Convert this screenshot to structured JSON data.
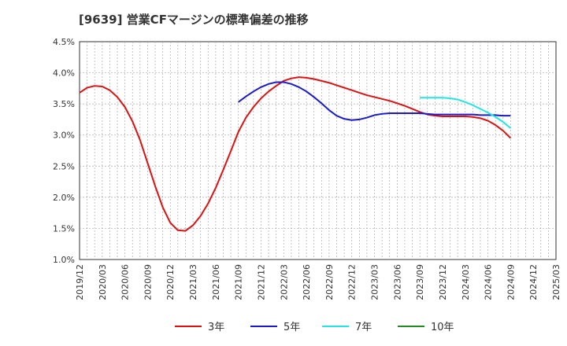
{
  "title": "[9639]  営業CFマージンの標準偏差の推移",
  "chart_data": {
    "type": "line",
    "title": "[9639]  営業CFマージンの標準偏差の推移",
    "xlabel": "",
    "ylabel": "",
    "ylim": [
      1.0,
      4.5
    ],
    "yticks": [
      "4.5%",
      "4.0%",
      "3.5%",
      "3.0%",
      "2.5%",
      "2.0%",
      "1.5%",
      "1.0%"
    ],
    "xticks": [
      "2019/12",
      "2020/03",
      "2020/06",
      "2020/09",
      "2020/12",
      "2021/03",
      "2021/06",
      "2021/09",
      "2021/12",
      "2022/03",
      "2022/06",
      "2022/09",
      "2022/12",
      "2023/03",
      "2023/06",
      "2023/09",
      "2023/12",
      "2024/03",
      "2024/06",
      "2024/09",
      "2024/12",
      "2025/03"
    ],
    "grid": true,
    "legend_position": "bottom",
    "series": [
      {
        "name": "3年",
        "color": "#dd1111",
        "points": [
          [
            "2019/12",
            3.68
          ],
          [
            "2020/01",
            3.76
          ],
          [
            "2020/02",
            3.79
          ],
          [
            "2020/03",
            3.78
          ],
          [
            "2020/04",
            3.72
          ],
          [
            "2020/05",
            3.61
          ],
          [
            "2020/06",
            3.45
          ],
          [
            "2020/07",
            3.22
          ],
          [
            "2020/08",
            2.92
          ],
          [
            "2020/09",
            2.55
          ],
          [
            "2020/10",
            2.18
          ],
          [
            "2020/11",
            1.84
          ],
          [
            "2020/12",
            1.59
          ],
          [
            "2021/01",
            1.47
          ],
          [
            "2021/02",
            1.46
          ],
          [
            "2021/03",
            1.55
          ],
          [
            "2021/04",
            1.7
          ],
          [
            "2021/05",
            1.9
          ],
          [
            "2021/06",
            2.15
          ],
          [
            "2021/07",
            2.44
          ],
          [
            "2021/08",
            2.74
          ],
          [
            "2021/09",
            3.05
          ],
          [
            "2021/10",
            3.28
          ],
          [
            "2021/11",
            3.45
          ],
          [
            "2021/12",
            3.59
          ],
          [
            "2022/01",
            3.7
          ],
          [
            "2022/02",
            3.79
          ],
          [
            "2022/03",
            3.87
          ],
          [
            "2022/04",
            3.91
          ],
          [
            "2022/05",
            3.93
          ],
          [
            "2022/06",
            3.92
          ],
          [
            "2022/07",
            3.9
          ],
          [
            "2022/08",
            3.87
          ],
          [
            "2022/09",
            3.84
          ],
          [
            "2022/10",
            3.8
          ],
          [
            "2022/11",
            3.76
          ],
          [
            "2022/12",
            3.72
          ],
          [
            "2023/01",
            3.68
          ],
          [
            "2023/02",
            3.64
          ],
          [
            "2023/03",
            3.61
          ],
          [
            "2023/04",
            3.58
          ],
          [
            "2023/05",
            3.55
          ],
          [
            "2023/06",
            3.51
          ],
          [
            "2023/07",
            3.47
          ],
          [
            "2023/08",
            3.42
          ],
          [
            "2023/09",
            3.37
          ],
          [
            "2023/10",
            3.33
          ],
          [
            "2023/11",
            3.31
          ],
          [
            "2023/12",
            3.3
          ],
          [
            "2024/01",
            3.3
          ],
          [
            "2024/02",
            3.3
          ],
          [
            "2024/03",
            3.3
          ],
          [
            "2024/04",
            3.29
          ],
          [
            "2024/05",
            3.27
          ],
          [
            "2024/06",
            3.23
          ],
          [
            "2024/07",
            3.16
          ],
          [
            "2024/08",
            3.07
          ],
          [
            "2024/09",
            2.95
          ]
        ]
      },
      {
        "name": "5年",
        "color": "#1a1acc",
        "points": [
          [
            "2021/09",
            3.53
          ],
          [
            "2021/10",
            3.62
          ],
          [
            "2021/11",
            3.7
          ],
          [
            "2021/12",
            3.77
          ],
          [
            "2022/01",
            3.82
          ],
          [
            "2022/02",
            3.85
          ],
          [
            "2022/03",
            3.85
          ],
          [
            "2022/04",
            3.82
          ],
          [
            "2022/05",
            3.77
          ],
          [
            "2022/06",
            3.7
          ],
          [
            "2022/07",
            3.61
          ],
          [
            "2022/08",
            3.51
          ],
          [
            "2022/09",
            3.4
          ],
          [
            "2022/10",
            3.31
          ],
          [
            "2022/11",
            3.26
          ],
          [
            "2022/12",
            3.24
          ],
          [
            "2023/01",
            3.25
          ],
          [
            "2023/02",
            3.28
          ],
          [
            "2023/03",
            3.32
          ],
          [
            "2023/04",
            3.34
          ],
          [
            "2023/05",
            3.35
          ],
          [
            "2023/06",
            3.35
          ],
          [
            "2023/07",
            3.35
          ],
          [
            "2023/08",
            3.35
          ],
          [
            "2023/09",
            3.35
          ],
          [
            "2023/10",
            3.34
          ],
          [
            "2023/11",
            3.33
          ],
          [
            "2023/12",
            3.33
          ],
          [
            "2024/01",
            3.33
          ],
          [
            "2024/02",
            3.33
          ],
          [
            "2024/03",
            3.33
          ],
          [
            "2024/04",
            3.33
          ],
          [
            "2024/05",
            3.32
          ],
          [
            "2024/06",
            3.32
          ],
          [
            "2024/07",
            3.32
          ],
          [
            "2024/08",
            3.31
          ],
          [
            "2024/09",
            3.31
          ]
        ]
      },
      {
        "name": "7年",
        "color": "#22e6e6",
        "points": [
          [
            "2023/09",
            3.6
          ],
          [
            "2023/10",
            3.6
          ],
          [
            "2023/11",
            3.6
          ],
          [
            "2023/12",
            3.6
          ],
          [
            "2024/01",
            3.59
          ],
          [
            "2024/02",
            3.57
          ],
          [
            "2024/03",
            3.53
          ],
          [
            "2024/04",
            3.48
          ],
          [
            "2024/05",
            3.42
          ],
          [
            "2024/06",
            3.36
          ],
          [
            "2024/07",
            3.29
          ],
          [
            "2024/08",
            3.21
          ],
          [
            "2024/09",
            3.11
          ]
        ]
      },
      {
        "name": "10年",
        "color": "#228b22",
        "points": []
      }
    ]
  }
}
